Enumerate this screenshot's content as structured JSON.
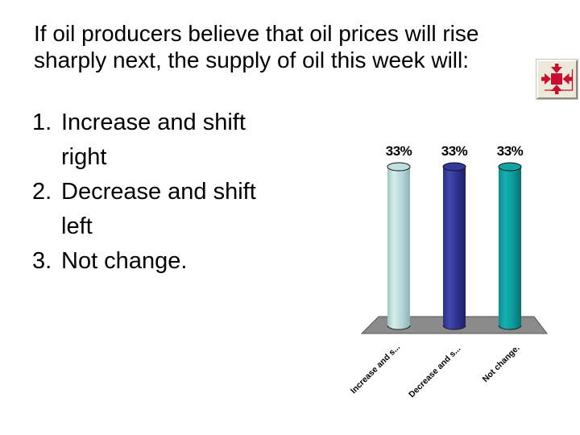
{
  "slide": {
    "background": "#ffffff",
    "title": {
      "lines": [
        "If oil producers believe that oil prices will rise",
        "sharply next, the supply of oil this week will:"
      ]
    },
    "options": [
      {
        "number": "1.",
        "text": "Increase and shift right",
        "lines": [
          "Increase and shift",
          "right"
        ]
      },
      {
        "number": "2.",
        "text": "Decrease and shift left",
        "lines": [
          "Decrease and shift",
          "left"
        ]
      },
      {
        "number": "3.",
        "text": "Not change.",
        "lines": [
          "Not change.",
          ""
        ]
      }
    ]
  },
  "chart_data": {
    "type": "bar",
    "style": "3d-cylinder",
    "categories": [
      "Increase and s...",
      "Decrease and s...",
      "Not change."
    ],
    "values": [
      33,
      33,
      33
    ],
    "value_labels": [
      "33%",
      "33%",
      "33%"
    ],
    "unit": "%",
    "ylim": [
      0,
      33
    ],
    "gridlines": false,
    "legend": false,
    "label_color": "#000000",
    "floor_color": "#8b8b8b",
    "floor_edge_color": "#555555",
    "bar_styles": [
      {
        "name": "light-cyan",
        "edge_left": "#9ec5c5",
        "highlight": "#d9eded",
        "mid": "#b5d8d8",
        "edge_right": "#8db3b4",
        "top": "#c0dfdf"
      },
      {
        "name": "dark-blue",
        "edge_left": "#2b2e80",
        "highlight": "#424aae",
        "mid": "#2e3290",
        "edge_right": "#1d2064",
        "top": "#333a9b"
      },
      {
        "name": "teal",
        "edge_left": "#0b8f8f",
        "highlight": "#17b0b0",
        "mid": "#0d9c9c",
        "edge_right": "#077070",
        "top": "#11a2a2"
      }
    ]
  },
  "response_icon": {
    "name": "audience-response-indicator",
    "background": "#ece8db",
    "glyph_color": "#c8102e"
  }
}
